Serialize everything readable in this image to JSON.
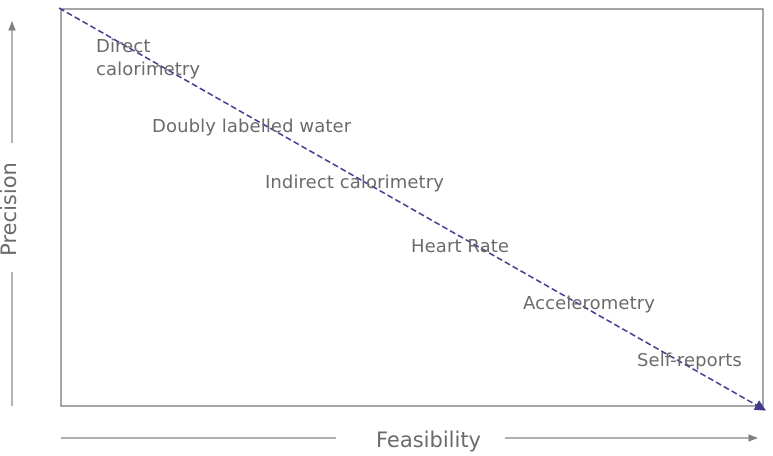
{
  "diagram": {
    "x_axis_title": "Feasibility",
    "y_axis_title": "Precision",
    "methods": [
      {
        "id": "direct-calorimetry",
        "lines": [
          "Direct",
          "calorimetry"
        ]
      },
      {
        "id": "doubly-labelled-water",
        "lines": [
          "Doubly labelled water"
        ]
      },
      {
        "id": "indirect-calorimetry",
        "lines": [
          "Indirect calorimetry"
        ]
      },
      {
        "id": "heart-rate",
        "lines": [
          "Heart Rate"
        ]
      },
      {
        "id": "accelerometry",
        "lines": [
          "Accelerometry"
        ]
      },
      {
        "id": "self-reports",
        "lines": [
          "Self-reports"
        ]
      }
    ],
    "colors": {
      "frame": "#6b6b6b",
      "axis_arrow": "#808080",
      "trend_line": "#3f3a8c",
      "label_text": "#6b6b6b"
    }
  }
}
